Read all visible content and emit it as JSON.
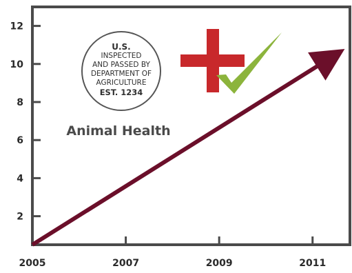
{
  "chart_data": {
    "type": "line",
    "title": "",
    "xlabel": "",
    "ylabel": "",
    "x_ticks": [
      2005,
      2007,
      2009,
      2011
    ],
    "y_ticks": [
      2,
      4,
      6,
      8,
      10,
      12
    ],
    "xlim": [
      2005,
      2011.8
    ],
    "ylim": [
      0.5,
      13
    ],
    "grid": false,
    "series": [
      {
        "points": [
          {
            "x": 2005,
            "y": 0.5
          },
          {
            "x": 2011.5,
            "y": 10.5
          }
        ],
        "color": "#6b0f2a",
        "arrow_end": true
      }
    ],
    "annotations": {
      "center_label": "Animal Health",
      "seal": {
        "line1": "U.S.",
        "line2": "INSPECTED",
        "line3": "AND PASSED BY",
        "line4": "DEPARTMENT OF",
        "line5": "AGRICULTURE",
        "line6": "EST. 1234"
      },
      "cross_color": "#c8282b",
      "check_color": "#8cb43c"
    },
    "axis_color": "#4a4a4a",
    "tick_label_color": "#2a2a2a"
  }
}
